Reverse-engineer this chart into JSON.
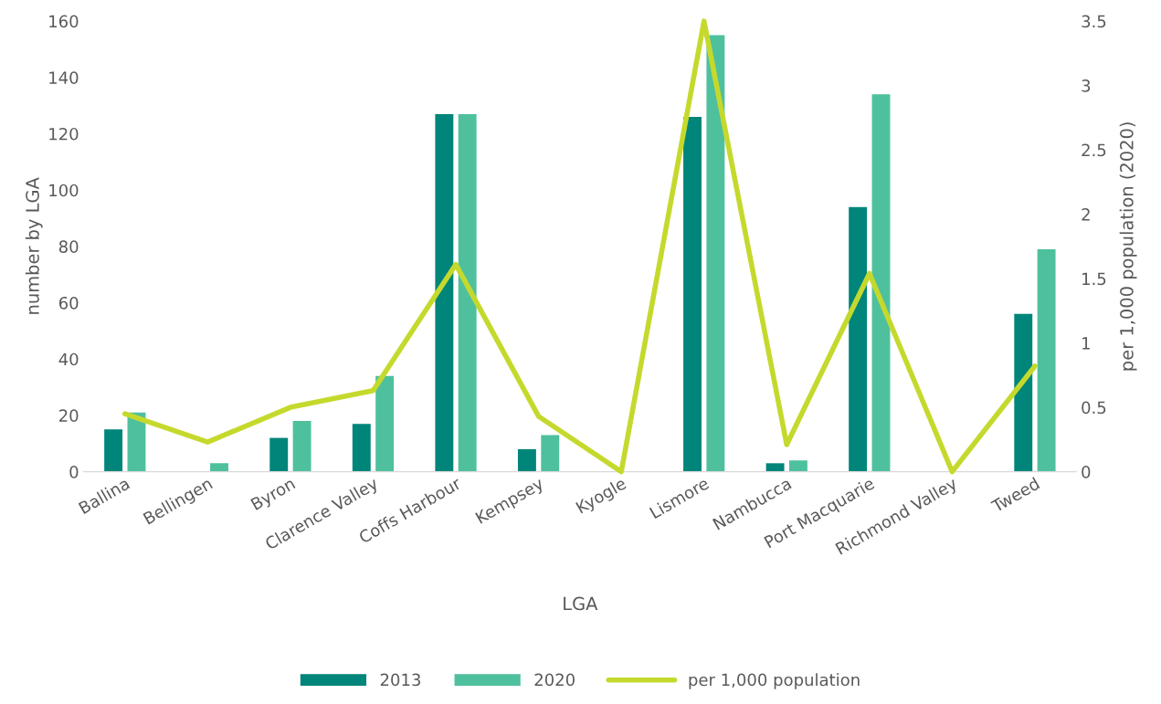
{
  "chart_data": {
    "type": "bar",
    "xlabel": "LGA",
    "ylabel": "number by LGA",
    "y2label": "per 1,000 population (2020)",
    "categories": [
      "Ballina",
      "Bellingen",
      "Byron",
      "Clarence Valley",
      "Coffs Harbour",
      "Kempsey",
      "Kyogle",
      "Lismore",
      "Nambucca",
      "Port Macquarie",
      "Richmond Valley",
      "Tweed"
    ],
    "series": [
      {
        "name": "2013",
        "color": "#00857a",
        "values": [
          15,
          0,
          12,
          17,
          127,
          8,
          0,
          126,
          3,
          94,
          0,
          56
        ]
      },
      {
        "name": "2020",
        "color": "#4fc09d",
        "values": [
          21,
          3,
          18,
          34,
          127,
          13,
          0,
          155,
          4,
          134,
          0,
          79
        ]
      },
      {
        "name": "per 1,000 population",
        "type": "line",
        "axis": "y2",
        "color": "#c5d92d",
        "values": [
          0.45,
          0.23,
          0.5,
          0.63,
          1.61,
          0.43,
          0,
          3.5,
          0.21,
          1.54,
          0,
          0.82
        ]
      }
    ],
    "ylim": [
      0,
      160
    ],
    "yticks": [
      0,
      20,
      40,
      60,
      80,
      100,
      120,
      140,
      160
    ],
    "y2lim": [
      0,
      3.5
    ],
    "y2ticks": [
      0,
      0.5,
      1,
      1.5,
      2,
      2.5,
      3,
      3.5
    ],
    "grid": false,
    "legend": "bottom",
    "marker": "none"
  }
}
